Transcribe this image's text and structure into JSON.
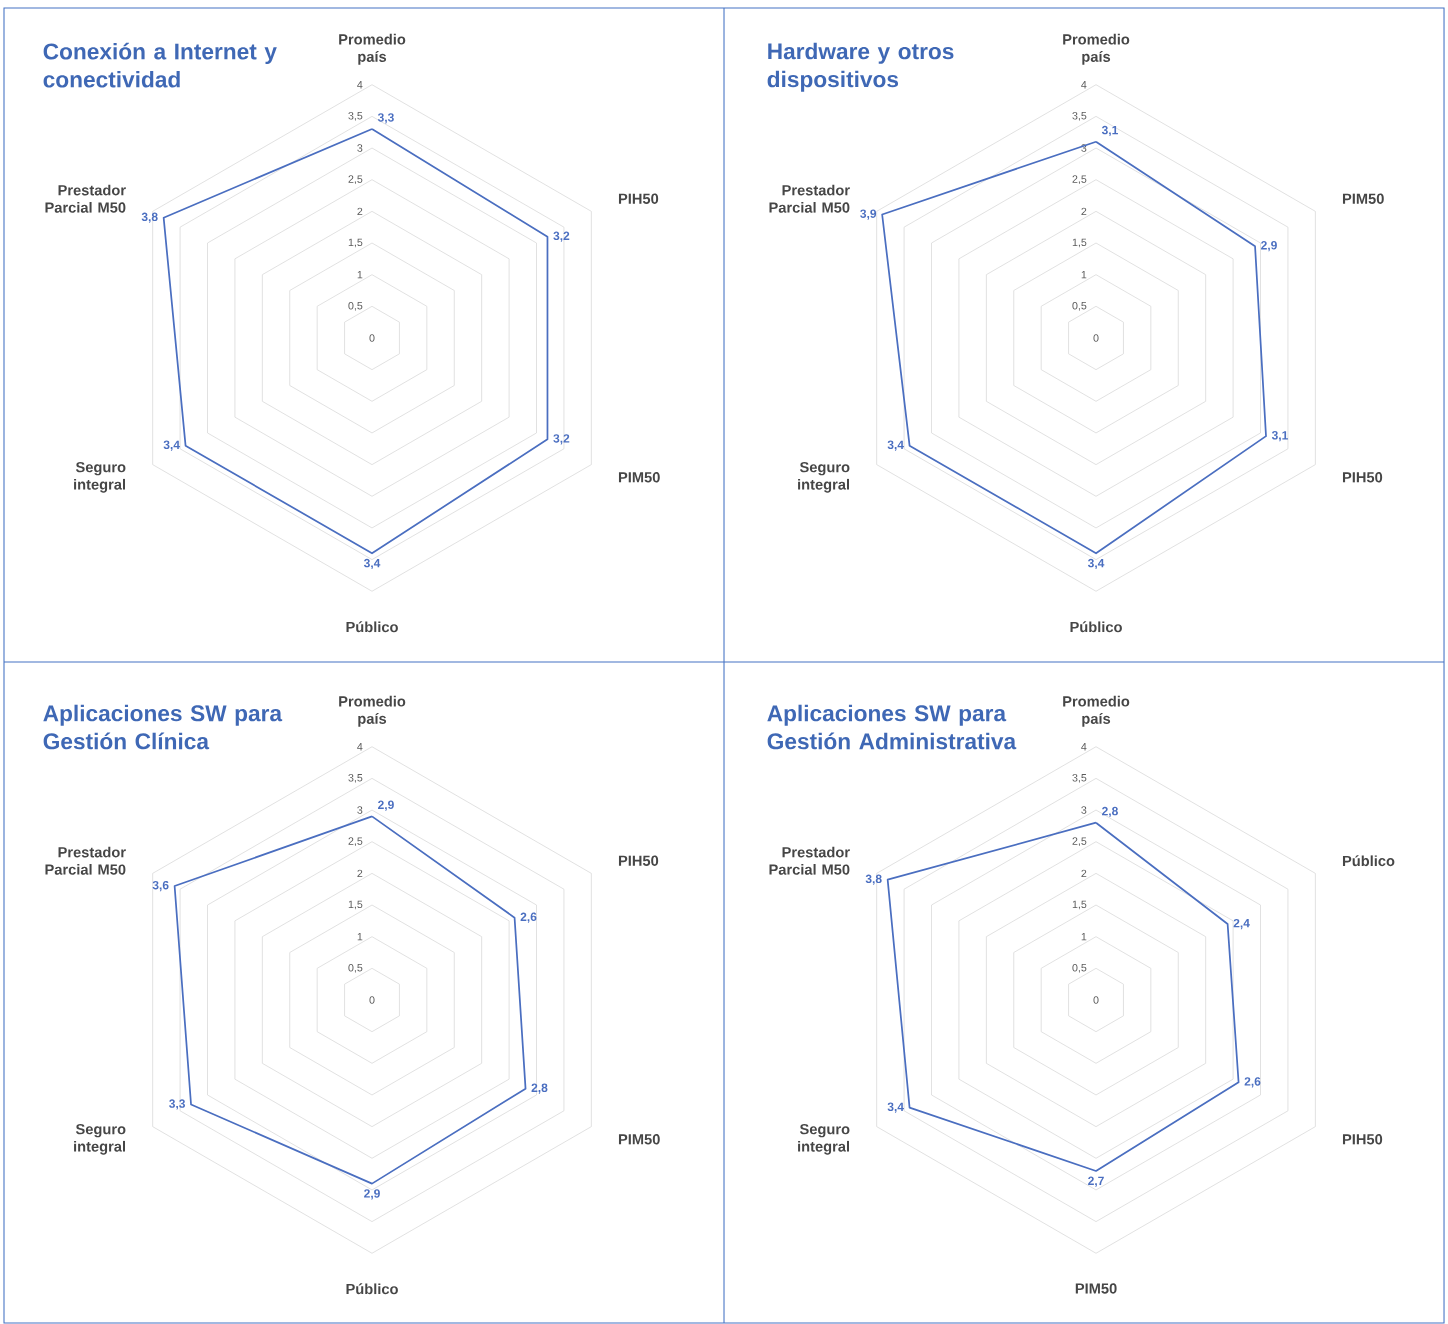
{
  "chart_data": [
    {
      "type": "radar",
      "title": "Conexión a Internet y conectividad",
      "categories": [
        "Promedio país",
        "PIH50",
        "PIM50",
        "Público",
        "Seguro integral",
        "Prestador Parcial M50"
      ],
      "ylim": [
        0,
        4
      ],
      "yticks": [
        {
          "value": 0,
          "label": "0"
        },
        {
          "value": 0.5,
          "label": "0,5"
        },
        1,
        {
          "value": 1.5,
          "label": "1,5"
        },
        2,
        {
          "value": 2.5,
          "label": "2,5"
        },
        3,
        {
          "value": 3.5,
          "label": "3,5"
        },
        4
      ],
      "grid": true,
      "series": [
        {
          "color": "#4a6ec0",
          "values": [
            3.3,
            3.2,
            3.2,
            3.4,
            3.4,
            3.8
          ],
          "value_labels": [
            "3,3",
            "3,2",
            "3,2",
            "3,4",
            "3,4",
            "3,8"
          ]
        }
      ]
    },
    {
      "type": "radar",
      "title": "Hardware y otros dispositivos",
      "categories": [
        "Promedio país",
        "PIM50",
        "PIH50",
        "Público",
        "Seguro integral",
        "Prestador Parcial M50"
      ],
      "ylim": [
        0,
        4
      ],
      "yticks": [
        {
          "value": 0,
          "label": "0"
        },
        {
          "value": 0.5,
          "label": "0,5"
        },
        1,
        {
          "value": 1.5,
          "label": "1,5"
        },
        2,
        {
          "value": 2.5,
          "label": "2,5"
        },
        3,
        {
          "value": 3.5,
          "label": "3,5"
        },
        4
      ],
      "grid": true,
      "series": [
        {
          "color": "#4a6ec0",
          "values": [
            3.1,
            2.9,
            3.1,
            3.4,
            3.4,
            3.9
          ],
          "value_labels": [
            "3,1",
            "2,9",
            "3,1",
            "3,4",
            "3,4",
            "3,9"
          ]
        }
      ]
    },
    {
      "type": "radar",
      "title": "Aplicaciones SW para Gestión Clínica",
      "categories": [
        "Promedio país",
        "PIH50",
        "PIM50",
        "Público",
        "Seguro integral",
        "Prestador Parcial M50"
      ],
      "ylim": [
        0,
        4
      ],
      "yticks": [
        {
          "value": 0,
          "label": "0"
        },
        {
          "value": 0.5,
          "label": "0,5"
        },
        1,
        {
          "value": 1.5,
          "label": "1,5"
        },
        2,
        {
          "value": 2.5,
          "label": "2,5"
        },
        3,
        {
          "value": 3.5,
          "label": "3,5"
        },
        4
      ],
      "grid": true,
      "series": [
        {
          "color": "#4a6ec0",
          "values": [
            2.9,
            2.6,
            2.8,
            2.9,
            3.3,
            3.6
          ],
          "value_labels": [
            "2,9",
            "2,6",
            "2,8",
            "2,9",
            "3,3",
            "3,6"
          ]
        }
      ]
    },
    {
      "type": "radar",
      "title": "Aplicaciones SW para Gestión Administrativa",
      "categories": [
        "Promedio país",
        "Público",
        "PIH50",
        "PIM50",
        "Seguro integral",
        "Prestador Parcial M50"
      ],
      "ylim": [
        0,
        4
      ],
      "yticks": [
        {
          "value": 0,
          "label": "0"
        },
        {
          "value": 0.5,
          "label": "0,5"
        },
        1,
        {
          "value": 1.5,
          "label": "1,5"
        },
        2,
        {
          "value": 2.5,
          "label": "2,5"
        },
        3,
        {
          "value": 3.5,
          "label": "3,5"
        },
        4
      ],
      "grid": true,
      "series": [
        {
          "color": "#4a6ec0",
          "values": [
            2.8,
            2.4,
            2.6,
            2.7,
            3.4,
            3.8
          ],
          "value_labels": [
            "2,8",
            "2,4",
            "2,6",
            "2,7",
            "3,4",
            "3,8"
          ]
        }
      ]
    }
  ]
}
